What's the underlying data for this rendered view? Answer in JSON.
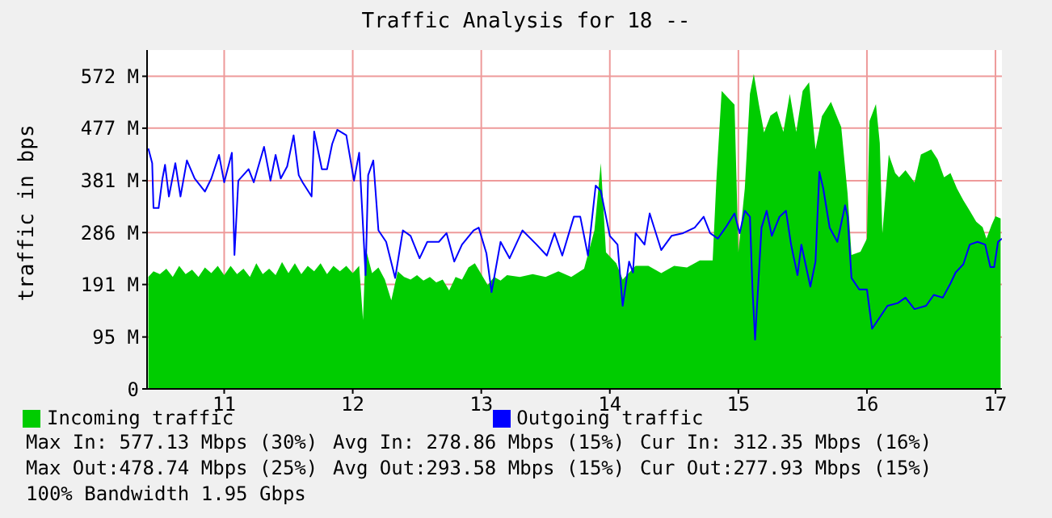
{
  "chart_data": {
    "type": "area",
    "title": "Traffic Analysis for 18 --",
    "ylabel": "traffic in bps",
    "xlim": [
      10.4,
      17.05
    ],
    "xticks": [
      11,
      12,
      13,
      14,
      15,
      16,
      17
    ],
    "ylim": [
      0,
      620
    ],
    "yticks": [
      {
        "value": 0,
        "label": "0"
      },
      {
        "value": 95,
        "label": "95 M"
      },
      {
        "value": 191,
        "label": "191 M"
      },
      {
        "value": 286,
        "label": "286 M"
      },
      {
        "value": 381,
        "label": "381 M"
      },
      {
        "value": 477,
        "label": "477 M"
      },
      {
        "value": 572,
        "label": "572 M"
      }
    ],
    "grid": true,
    "legend": "bottom left",
    "marker": "none",
    "series": [
      {
        "name": "Incoming traffic",
        "color": "#00cc00",
        "x": [
          10.41,
          10.45,
          10.5,
          10.55,
          10.6,
          10.65,
          10.7,
          10.75,
          10.8,
          10.85,
          10.9,
          10.95,
          11.0,
          11.05,
          11.1,
          11.15,
          11.2,
          11.25,
          11.3,
          11.35,
          11.4,
          11.45,
          11.5,
          11.55,
          11.6,
          11.65,
          11.7,
          11.75,
          11.8,
          11.85,
          11.9,
          11.95,
          12.0,
          12.05,
          12.08,
          12.1,
          12.15,
          12.2,
          12.25,
          12.3,
          12.35,
          12.4,
          12.45,
          12.5,
          12.55,
          12.6,
          12.65,
          12.7,
          12.75,
          12.8,
          12.85,
          12.9,
          12.95,
          13.0,
          13.05,
          13.1,
          13.15,
          13.2,
          13.3,
          13.4,
          13.5,
          13.6,
          13.7,
          13.8,
          13.88,
          13.93,
          13.97,
          14.05,
          14.1,
          14.2,
          14.3,
          14.4,
          14.5,
          14.6,
          14.7,
          14.8,
          14.83,
          14.87,
          14.93,
          14.97,
          15.0,
          15.05,
          15.09,
          15.12,
          15.16,
          15.2,
          15.25,
          15.3,
          15.35,
          15.4,
          15.45,
          15.5,
          15.55,
          15.6,
          15.65,
          15.72,
          15.8,
          15.85,
          15.88,
          15.95,
          16.0,
          16.02,
          16.07,
          16.1,
          16.12,
          16.17,
          16.22,
          16.25,
          16.3,
          16.37,
          16.42,
          16.5,
          16.55,
          16.6,
          16.65,
          16.7,
          16.75,
          16.8,
          16.85,
          16.9,
          16.93,
          16.97,
          17.0,
          17.04
        ],
        "values": [
          205,
          215,
          210,
          220,
          205,
          225,
          210,
          218,
          205,
          222,
          212,
          225,
          208,
          225,
          210,
          220,
          205,
          230,
          210,
          220,
          208,
          232,
          212,
          230,
          210,
          225,
          215,
          230,
          210,
          225,
          215,
          225,
          212,
          225,
          126,
          258,
          212,
          222,
          200,
          162,
          215,
          205,
          200,
          208,
          198,
          205,
          195,
          200,
          180,
          205,
          200,
          222,
          230,
          210,
          190,
          205,
          198,
          208,
          205,
          210,
          205,
          215,
          205,
          220,
          290,
          413,
          250,
          230,
          200,
          225,
          225,
          212,
          225,
          222,
          235,
          235,
          387,
          545,
          530,
          520,
          250,
          367,
          540,
          576,
          520,
          469,
          500,
          508,
          470,
          540,
          470,
          545,
          561,
          438,
          499,
          525,
          479,
          356,
          245,
          251,
          275,
          490,
          521,
          450,
          284,
          429,
          395,
          387,
          400,
          378,
          429,
          438,
          420,
          387,
          395,
          367,
          345,
          326,
          306,
          296,
          275,
          300,
          316,
          312
        ]
      },
      {
        "name": "Outgoing traffic",
        "type": "line",
        "color": "#0000ff",
        "x": [
          10.41,
          10.44,
          10.45,
          10.49,
          10.52,
          10.54,
          10.57,
          10.62,
          10.66,
          10.71,
          10.77,
          10.85,
          10.9,
          10.96,
          11.0,
          11.06,
          11.08,
          11.11,
          11.19,
          11.23,
          11.31,
          11.36,
          11.4,
          11.44,
          11.49,
          11.54,
          11.58,
          11.61,
          11.68,
          11.7,
          11.76,
          11.8,
          11.84,
          11.88,
          11.95,
          12.01,
          12.05,
          12.1,
          12.12,
          12.16,
          12.2,
          12.26,
          12.33,
          12.39,
          12.45,
          12.52,
          12.58,
          12.67,
          12.73,
          12.79,
          12.85,
          12.94,
          12.98,
          13.04,
          13.08,
          13.15,
          13.22,
          13.32,
          13.43,
          13.51,
          13.57,
          13.63,
          13.72,
          13.77,
          13.83,
          13.89,
          13.93,
          14.0,
          14.06,
          14.1,
          14.15,
          14.18,
          14.2,
          14.27,
          14.31,
          14.4,
          14.48,
          14.57,
          14.66,
          14.73,
          14.78,
          14.84,
          14.9,
          14.97,
          15.01,
          15.05,
          15.09,
          15.11,
          15.13,
          15.18,
          15.22,
          15.26,
          15.32,
          15.37,
          15.41,
          15.46,
          15.49,
          15.56,
          15.6,
          15.63,
          15.66,
          15.71,
          15.77,
          15.83,
          15.85,
          15.88,
          15.94,
          16.0,
          16.04,
          16.1,
          16.16,
          16.24,
          16.3,
          16.37,
          16.46,
          16.52,
          16.59,
          16.65,
          16.69,
          16.75,
          16.8,
          16.86,
          16.92,
          16.96,
          16.99,
          17.02,
          17.05
        ],
        "values": [
          440,
          413,
          331,
          331,
          385,
          410,
          352,
          413,
          352,
          418,
          385,
          361,
          385,
          428,
          378,
          432,
          245,
          381,
          402,
          378,
          443,
          381,
          428,
          385,
          407,
          464,
          391,
          378,
          352,
          471,
          402,
          402,
          448,
          474,
          464,
          381,
          432,
          208,
          391,
          418,
          290,
          269,
          203,
          290,
          280,
          239,
          269,
          269,
          285,
          233,
          264,
          290,
          295,
          248,
          177,
          269,
          239,
          290,
          264,
          244,
          285,
          244,
          315,
          315,
          244,
          372,
          362,
          280,
          264,
          152,
          233,
          213,
          285,
          264,
          321,
          254,
          280,
          285,
          295,
          315,
          285,
          275,
          295,
          321,
          285,
          326,
          315,
          182,
          90,
          295,
          326,
          280,
          315,
          326,
          264,
          208,
          264,
          187,
          233,
          397,
          367,
          295,
          269,
          336,
          315,
          203,
          182,
          182,
          110,
          131,
          152,
          157,
          167,
          146,
          152,
          172,
          167,
          193,
          213,
          228,
          264,
          269,
          264,
          223,
          223,
          269,
          275
        ]
      }
    ],
    "annotations": [
      "Max In: 577.13 Mbps (30%)",
      "Avg In: 278.86 Mbps (15%)",
      "Cur In: 312.35 Mbps (16%)",
      "Max Out:478.74 Mbps (25%)",
      "Avg Out:293.58 Mbps (15%)",
      "Cur Out:277.93 Mbps (15%)",
      "100% Bandwidth 1.95 Gbps"
    ]
  }
}
